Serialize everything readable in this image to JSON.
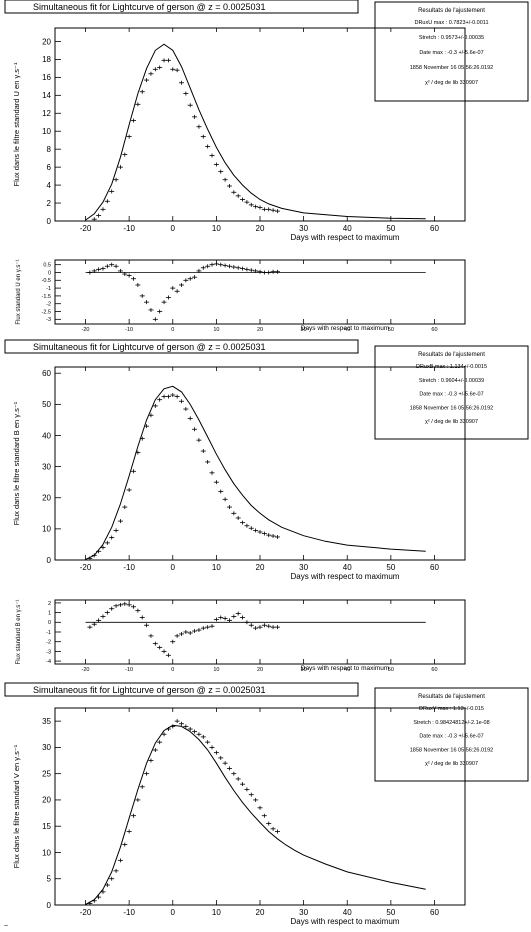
{
  "colors": {
    "background": "#ffffff",
    "ink": "#000000"
  },
  "corner_mark": "~",
  "panels": [
    {
      "id": "U",
      "title": "Simultaneous fit for Lightcurve of gerson @ z = 0.0025031",
      "stats": {
        "header": "Resultats de l'ajustement",
        "lines": [
          "DRuxU  max : 0.7823+/-0.0011",
          "Stretch : 0.9573+/-0.00035",
          "Date max : -0.3 +/-5.6e-07",
          "1858 November 16 05:56:26.0192",
          "χ² / deg de lib 330907"
        ]
      },
      "main": {
        "ylabel": "Flux dans le filtre standard U en   γ.s⁻¹",
        "xlabel": "Days with respect to maximum",
        "xticks": [
          "-20",
          "-10",
          "0",
          "10",
          "20",
          "30",
          "40",
          "50",
          "60"
        ],
        "yticks": [
          "0",
          "2",
          "4",
          "6",
          "8",
          "10",
          "12",
          "14",
          "16",
          "18",
          "20"
        ]
      },
      "residual": {
        "ylabel": "Flux standard U en   γ.s⁻¹",
        "xlabel": "Days with respect to maximum",
        "xticks": [
          "-20",
          "-10",
          "0",
          "10",
          "20",
          "30",
          "40",
          "50",
          "60"
        ],
        "yticks": [
          "0.5",
          "0",
          "-0.5",
          "-1",
          "-1.5",
          "-2",
          "-2.5",
          "-3"
        ]
      }
    },
    {
      "id": "B",
      "title": "Simultaneous fit for Lightcurve of gerson @ z = 0.0025031",
      "stats": {
        "header": "Resultats de l'ajustement",
        "lines": [
          "DRuxB  max : 1.134+/-0.0015",
          "Stretch : 0.9604+/-0.00039",
          "Date max : -0.3 +/-5.6e-07",
          "1858 November 16 05:56:26.0192",
          "χ² / deg de lib 330907"
        ]
      },
      "main": {
        "ylabel": "Flux dans le filtre standard B en   γ.s⁻¹",
        "xlabel": "Days with respect to maximum",
        "xticks": [
          "-20",
          "-10",
          "0",
          "10",
          "20",
          "30",
          "40",
          "50",
          "60"
        ],
        "yticks": [
          "0",
          "10",
          "20",
          "30",
          "40",
          "50",
          "60"
        ]
      },
      "residual": {
        "ylabel": "Flux standard B en   γ.s⁻¹",
        "xlabel": "Days with respect to maximum",
        "xticks": [
          "-20",
          "-10",
          "0",
          "10",
          "20",
          "30",
          "40",
          "50",
          "60"
        ],
        "yticks": [
          "2",
          "1",
          "0",
          "-1",
          "-2",
          "-3",
          "-4"
        ]
      }
    },
    {
      "id": "V",
      "title": "Simultaneous fit for Lightcurve of gerson @ z = 0.0025031",
      "stats": {
        "header": "Resultats de l'ajustement",
        "lines": [
          "DRuxV  max : 1.13+/-0.015",
          "Stretch : 0.98424812+/-2.1e-08",
          "Date max : -0.3 +/-5.6e-07",
          "1858 November 16 05:56:26.0192",
          "χ² / deg de lib 330907"
        ]
      },
      "main": {
        "ylabel": "Flux dans le filtre standard V en   γ.s⁻¹",
        "xlabel": "Days with respect to maximum",
        "xticks": [
          "-20",
          "-10",
          "0",
          "10",
          "20",
          "30",
          "40",
          "50",
          "60"
        ],
        "yticks": [
          "0",
          "5",
          "10",
          "15",
          "20",
          "25",
          "30",
          "35"
        ]
      }
    }
  ],
  "chart_data": [
    {
      "type": "scatter",
      "filter": "U",
      "title": "Simultaneous fit for Lightcurve of gerson @ z = 0.0025031",
      "xlabel": "Days with respect to maximum",
      "ylabel": "Flux dans le filtre standard U en γ.s⁻¹",
      "xlim": [
        -27,
        67
      ],
      "ylim": [
        0,
        21.5
      ],
      "model": {
        "x": [
          -20,
          -18,
          -16,
          -14,
          -12,
          -10,
          -8,
          -6,
          -4,
          -2,
          0,
          2,
          4,
          6,
          8,
          10,
          12,
          14,
          16,
          18,
          20,
          22,
          25,
          30,
          40,
          50,
          58
        ],
        "y": [
          0.1,
          0.8,
          2.1,
          4.1,
          7.1,
          10.7,
          14.2,
          17.0,
          19.0,
          19.7,
          19.0,
          17.2,
          14.8,
          12.4,
          10.2,
          8.2,
          6.5,
          5.1,
          4.0,
          3.1,
          2.4,
          1.9,
          1.4,
          0.9,
          0.5,
          0.3,
          0.25
        ]
      },
      "points": {
        "x": [
          -18,
          -17,
          -16,
          -15,
          -14,
          -13,
          -12,
          -11,
          -10,
          -9,
          -8,
          -7,
          -6,
          -5,
          -4,
          -3,
          -2,
          -1,
          0,
          1,
          2,
          3,
          4,
          5,
          6,
          7,
          8,
          9,
          10,
          11,
          12,
          13,
          14,
          15,
          16,
          17,
          18,
          19,
          20,
          21,
          22,
          23,
          24
        ],
        "y": [
          0.2,
          0.6,
          1.3,
          2.2,
          3.3,
          4.6,
          6.0,
          7.4,
          9.4,
          11.2,
          13.0,
          14.4,
          15.7,
          16.4,
          16.9,
          17.1,
          17.9,
          17.9,
          16.9,
          16.8,
          15.4,
          14.2,
          12.9,
          11.6,
          10.5,
          9.4,
          8.3,
          7.3,
          6.3,
          5.5,
          4.6,
          3.9,
          3.2,
          2.8,
          2.4,
          2.1,
          1.8,
          1.6,
          1.5,
          1.3,
          1.3,
          1.2,
          1.1
        ]
      }
    },
    {
      "type": "scatter",
      "filter": "U",
      "role": "residual",
      "xlabel": "Days with respect to maximum",
      "ylabel": "Flux standard U en γ.s⁻¹",
      "xlim": [
        -27,
        67
      ],
      "ylim": [
        -3.3,
        0.8
      ],
      "points": {
        "x": [
          -19,
          -18,
          -17,
          -16,
          -15,
          -14,
          -13,
          -12,
          -11,
          -10,
          -9,
          -8,
          -7,
          -6,
          -5,
          -4,
          -3,
          -2,
          -1,
          0,
          1,
          2,
          3,
          4,
          5,
          6,
          7,
          8,
          9,
          10,
          11,
          12,
          13,
          14,
          15,
          16,
          17,
          18,
          19,
          20,
          21,
          22,
          23,
          24
        ],
        "y": [
          0,
          0.1,
          0.2,
          0.25,
          0.4,
          0.5,
          0.4,
          0.1,
          -0.1,
          -0.2,
          -0.4,
          -0.8,
          -1.5,
          -1.9,
          -2.4,
          -3.0,
          -2.5,
          -1.9,
          -1.6,
          -1.0,
          -1.2,
          -0.8,
          -0.5,
          -0.4,
          -0.3,
          0.1,
          0.3,
          0.4,
          0.5,
          0.55,
          0.5,
          0.45,
          0.4,
          0.35,
          0.3,
          0.25,
          0.2,
          0.15,
          0.1,
          0.05,
          0.0,
          0.0,
          0.05,
          0.05
        ]
      }
    },
    {
      "type": "scatter",
      "filter": "B",
      "title": "Simultaneous fit for Lightcurve of gerson @ z = 0.0025031",
      "xlabel": "Days with respect to maximum",
      "ylabel": "Flux dans le filtre standard B en γ.s⁻¹",
      "xlim": [
        -27,
        67
      ],
      "ylim": [
        0,
        62
      ],
      "model": {
        "x": [
          -20,
          -18,
          -16,
          -14,
          -12,
          -10,
          -8,
          -6,
          -4,
          -2,
          0,
          2,
          4,
          6,
          8,
          10,
          12,
          14,
          16,
          18,
          20,
          22,
          25,
          30,
          35,
          40,
          50,
          58
        ],
        "y": [
          0.2,
          1.5,
          5.0,
          10.5,
          18.0,
          27.0,
          36.5,
          45.0,
          51.5,
          55.0,
          55.8,
          54.0,
          50.0,
          45.0,
          39.5,
          34.0,
          29.0,
          24.5,
          20.8,
          17.5,
          15.0,
          12.9,
          10.5,
          7.8,
          6.0,
          4.8,
          3.5,
          2.8
        ]
      },
      "points": {
        "x": [
          -19,
          -18,
          -17,
          -16,
          -15,
          -14,
          -13,
          -12,
          -11,
          -10,
          -9,
          -8,
          -7,
          -6,
          -5,
          -4,
          -3,
          -2,
          -1,
          0,
          1,
          2,
          3,
          4,
          5,
          6,
          7,
          8,
          9,
          10,
          11,
          12,
          13,
          14,
          15,
          16,
          17,
          18,
          19,
          20,
          21,
          22,
          23,
          24
        ],
        "y": [
          0.5,
          1.5,
          2.8,
          4.0,
          5.5,
          7.2,
          9.5,
          12.5,
          17.0,
          22.5,
          28.5,
          34.5,
          39.0,
          43.0,
          46.5,
          49.5,
          51.5,
          52.5,
          52.5,
          53.0,
          52.5,
          51.0,
          48.5,
          45.5,
          42.0,
          38.5,
          35.0,
          31.5,
          28.0,
          25.0,
          22.0,
          19.5,
          17.0,
          15.0,
          13.5,
          12.0,
          11.0,
          10.2,
          9.5,
          9.0,
          8.5,
          8.0,
          7.7,
          7.4
        ]
      }
    },
    {
      "type": "scatter",
      "filter": "B",
      "role": "residual",
      "xlabel": "Days with respect to maximum",
      "ylabel": "Flux standard B en γ.s⁻¹",
      "xlim": [
        -27,
        67
      ],
      "ylim": [
        -4.3,
        2.3
      ],
      "points": {
        "x": [
          -19,
          -18,
          -17,
          -16,
          -15,
          -14,
          -13,
          -12,
          -11,
          -10,
          -9,
          -8,
          -7,
          -6,
          -5,
          -4,
          -3,
          -2,
          -1,
          0,
          1,
          2,
          3,
          4,
          5,
          6,
          7,
          8,
          9,
          10,
          11,
          12,
          13,
          14,
          15,
          16,
          17,
          18,
          19,
          20,
          21,
          22,
          23,
          24
        ],
        "y": [
          -0.5,
          -0.2,
          0.2,
          0.6,
          1.0,
          1.4,
          1.7,
          1.8,
          1.9,
          1.8,
          1.6,
          1.2,
          0.5,
          -0.3,
          -1.4,
          -2.2,
          -2.6,
          -3.0,
          -3.4,
          -2.0,
          -1.4,
          -1.2,
          -1.0,
          -1.1,
          -0.9,
          -0.8,
          -0.6,
          -0.5,
          -0.4,
          0.3,
          0.5,
          0.4,
          0.2,
          0.6,
          0.9,
          0.5,
          0.0,
          -0.3,
          -0.6,
          -0.5,
          -0.3,
          -0.4,
          -0.5,
          -0.5
        ]
      }
    },
    {
      "type": "scatter",
      "filter": "V",
      "title": "Simultaneous fit for Lightcurve of gerson @ z = 0.0025031",
      "xlabel": "Days with respect to maximum",
      "ylabel": "Flux dans le filtre standard V en γ.s⁻¹",
      "xlim": [
        -27,
        67
      ],
      "ylim": [
        0,
        37.5
      ],
      "model": {
        "x": [
          -20,
          -18,
          -16,
          -14,
          -12,
          -10,
          -8,
          -6,
          -4,
          -2,
          0,
          2,
          4,
          6,
          8,
          10,
          12,
          14,
          16,
          18,
          20,
          22,
          24,
          26,
          28,
          30,
          35,
          40,
          50,
          58
        ],
        "y": [
          0.1,
          1.0,
          3.0,
          6.3,
          11.0,
          16.5,
          22.0,
          27.0,
          30.8,
          33.2,
          34.2,
          34.0,
          33.0,
          31.5,
          29.5,
          27.0,
          24.3,
          21.8,
          19.5,
          17.5,
          15.7,
          14.0,
          12.6,
          11.4,
          10.4,
          9.5,
          7.8,
          6.3,
          4.3,
          3.0
        ]
      },
      "points": {
        "x": [
          -19,
          -18,
          -17,
          -16,
          -15,
          -14,
          -13,
          -12,
          -11,
          -10,
          -9,
          -8,
          -7,
          -6,
          -5,
          -4,
          -3,
          -2,
          -1,
          0,
          1,
          2,
          3,
          4,
          5,
          6,
          7,
          8,
          9,
          10,
          11,
          12,
          13,
          14,
          15,
          16,
          17,
          18,
          19,
          20,
          21,
          22,
          23,
          24
        ],
        "y": [
          0.3,
          0.8,
          1.5,
          2.5,
          3.8,
          5.0,
          6.5,
          8.5,
          11.5,
          14.0,
          17.0,
          20.0,
          22.5,
          25.0,
          27.5,
          29.5,
          31.0,
          32.5,
          33.5,
          34.0,
          35.0,
          34.5,
          34.0,
          33.5,
          33.0,
          32.5,
          32.0,
          31.0,
          30.0,
          29.0,
          28.0,
          27.0,
          26.0,
          25.0,
          24.0,
          23.0,
          22.0,
          21.0,
          20.0,
          18.5,
          17.0,
          15.5,
          14.5,
          14.0
        ]
      }
    }
  ]
}
